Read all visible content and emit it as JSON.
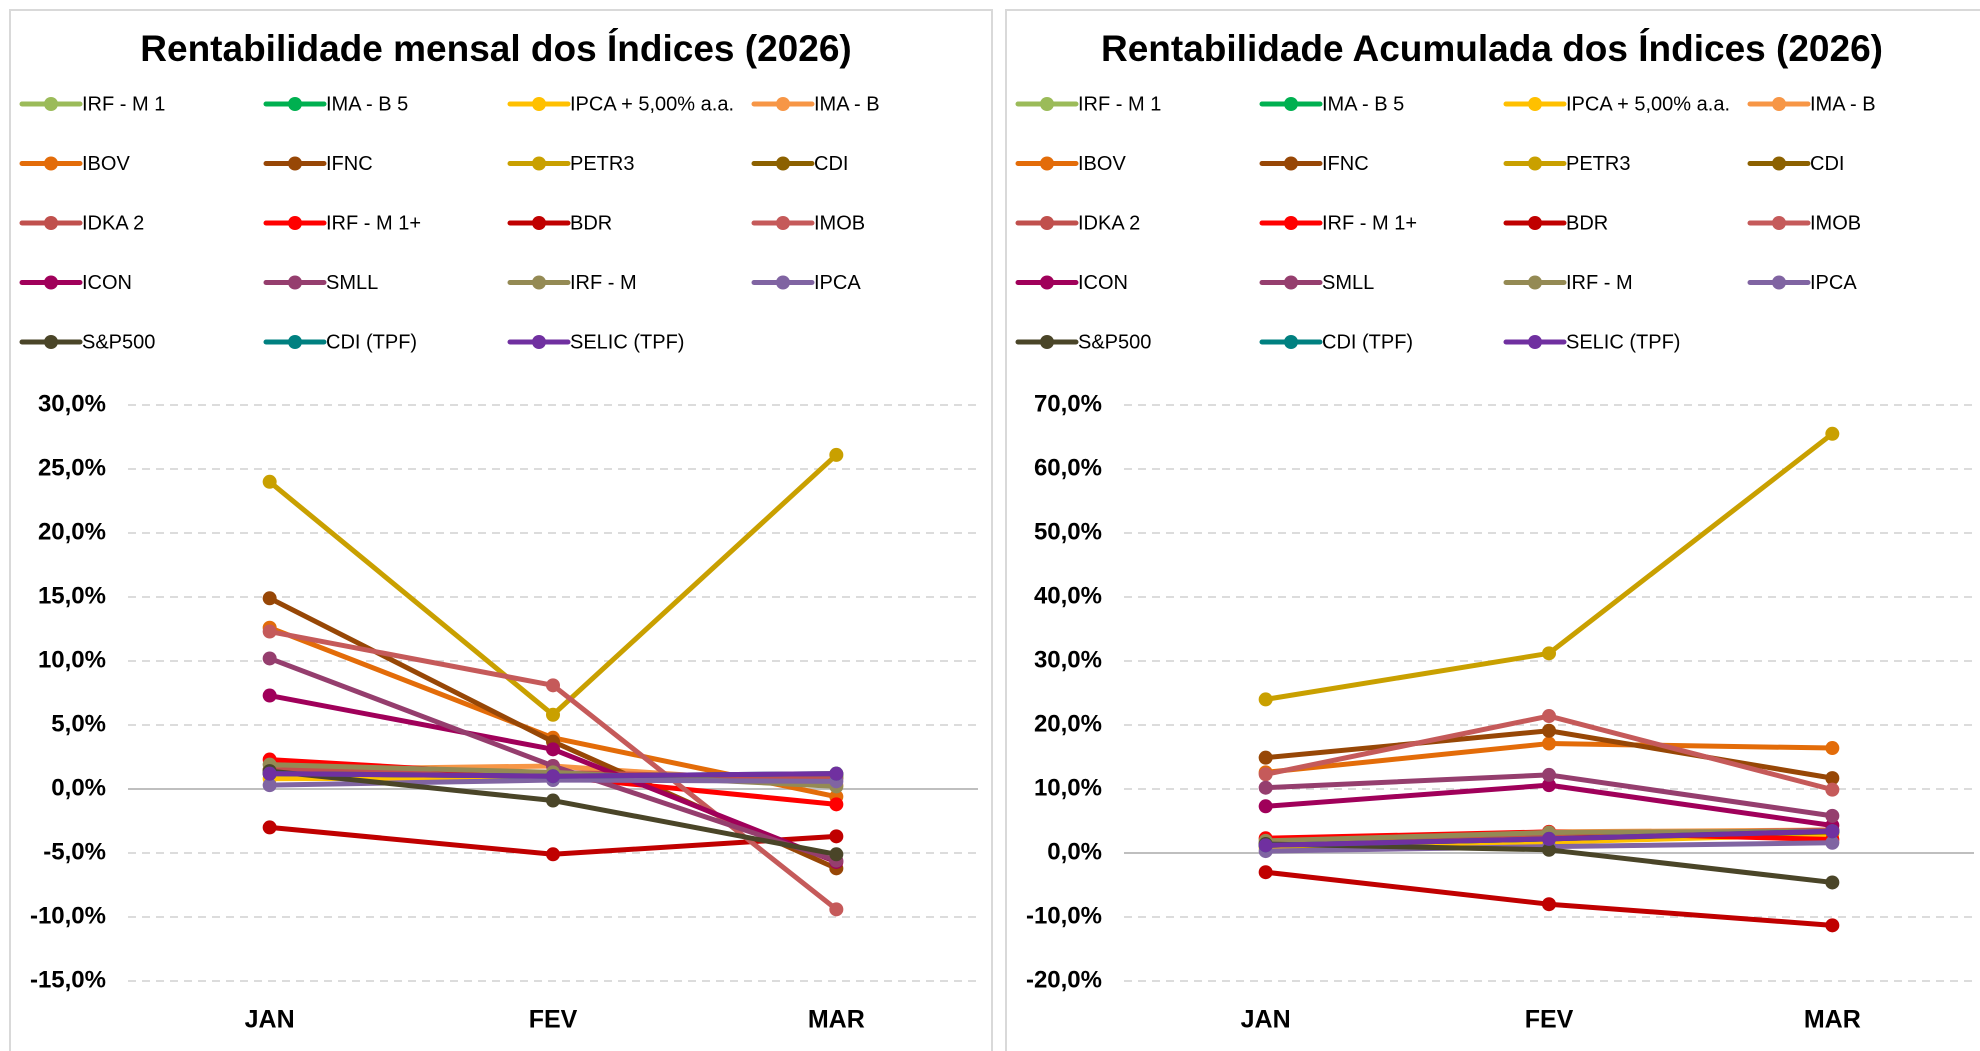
{
  "chart_data": [
    {
      "type": "line",
      "title": "Rentabilidade mensal dos Índices (2026)",
      "categories": [
        "JAN",
        "FEV",
        "MAR"
      ],
      "ylim": [
        -15,
        30
      ],
      "yticks": [
        {
          "value": -15,
          "label": "-15,0%"
        },
        {
          "value": -10,
          "label": "-10,0%"
        },
        {
          "value": -5,
          "label": "-5,0%"
        },
        {
          "value": 0,
          "label": "0,0%"
        },
        {
          "value": 5,
          "label": "5,0%"
        },
        {
          "value": 10,
          "label": "10,0%"
        },
        {
          "value": 15,
          "label": "15,0%"
        },
        {
          "value": 20,
          "label": "20,0%"
        },
        {
          "value": 25,
          "label": "25,0%"
        },
        {
          "value": 30,
          "label": "30,0%"
        }
      ],
      "grid": true,
      "series": [
        {
          "name": "IRF - M 1",
          "color": "#9bbb59",
          "values": [
            1.2,
            1.0,
            1.1
          ]
        },
        {
          "name": "IMA - B 5",
          "color": "#00b050",
          "values": [
            1.5,
            1.0,
            0.9
          ]
        },
        {
          "name": "IPCA + 5,00% a.a.",
          "color": "#ffc000",
          "values": [
            0.8,
            0.9,
            1.2
          ]
        },
        {
          "name": "IMA - B",
          "color": "#f79646",
          "values": [
            1.5,
            1.8,
            0.3
          ]
        },
        {
          "name": "IBOV",
          "color": "#e36c09",
          "values": [
            12.6,
            4.0,
            -0.6
          ]
        },
        {
          "name": "IFNC",
          "color": "#974706",
          "values": [
            14.9,
            3.7,
            -6.2
          ]
        },
        {
          "name": "PETR3",
          "color": "#c9a000",
          "values": [
            24.0,
            5.8,
            26.1
          ]
        },
        {
          "name": "CDI",
          "color": "#8c6100",
          "values": [
            1.2,
            1.0,
            1.1
          ]
        },
        {
          "name": "IDKA 2",
          "color": "#c0504d",
          "values": [
            1.5,
            1.3,
            0.8
          ]
        },
        {
          "name": "IRF - M 1+",
          "color": "#ff0000",
          "values": [
            2.3,
            1.0,
            -1.2
          ]
        },
        {
          "name": "BDR",
          "color": "#c00000",
          "values": [
            -3.0,
            -5.1,
            -3.7
          ]
        },
        {
          "name": "IMOB",
          "color": "#c55a5a",
          "values": [
            12.3,
            8.1,
            -9.4
          ]
        },
        {
          "name": "ICON",
          "color": "#a0005a",
          "values": [
            7.3,
            3.1,
            -5.7
          ]
        },
        {
          "name": "SMLL",
          "color": "#953e6e",
          "values": [
            10.2,
            1.8,
            -5.6
          ]
        },
        {
          "name": "IRF - M",
          "color": "#948a54",
          "values": [
            1.9,
            1.3,
            0.2
          ]
        },
        {
          "name": "IPCA",
          "color": "#8064a2",
          "values": [
            0.3,
            0.7,
            0.6
          ]
        },
        {
          "name": "S&P500",
          "color": "#4a4528",
          "values": [
            1.4,
            -0.9,
            -5.1
          ]
        },
        {
          "name": "CDI (TPF)",
          "color": "#008080",
          "values": [
            1.2,
            1.0,
            1.2
          ]
        },
        {
          "name": "SELIC (TPF)",
          "color": "#7030a0",
          "values": [
            1.2,
            1.0,
            1.2
          ]
        }
      ]
    },
    {
      "type": "line",
      "title": "Rentabilidade Acumulada dos Índices (2026)",
      "categories": [
        "JAN",
        "FEV",
        "MAR"
      ],
      "ylim": [
        -20,
        70
      ],
      "yticks": [
        {
          "value": -20,
          "label": "-20,0%"
        },
        {
          "value": -10,
          "label": "-10,0%"
        },
        {
          "value": 0,
          "label": "0,0%"
        },
        {
          "value": 10,
          "label": "10,0%"
        },
        {
          "value": 20,
          "label": "20,0%"
        },
        {
          "value": 30,
          "label": "30,0%"
        },
        {
          "value": 40,
          "label": "40,0%"
        },
        {
          "value": 50,
          "label": "50,0%"
        },
        {
          "value": 60,
          "label": "60,0%"
        },
        {
          "value": 70,
          "label": "70,0%"
        }
      ],
      "grid": true,
      "series": [
        {
          "name": "IRF - M 1",
          "color": "#9bbb59",
          "values": [
            1.2,
            2.2,
            3.3
          ]
        },
        {
          "name": "IMA - B 5",
          "color": "#00b050",
          "values": [
            1.5,
            2.5,
            3.4
          ]
        },
        {
          "name": "IPCA + 5,00% a.a.",
          "color": "#ffc000",
          "values": [
            0.8,
            1.7,
            2.9
          ]
        },
        {
          "name": "IMA - B",
          "color": "#f79646",
          "values": [
            1.5,
            3.3,
            3.6
          ]
        },
        {
          "name": "IBOV",
          "color": "#e36c09",
          "values": [
            12.6,
            17.1,
            16.4
          ]
        },
        {
          "name": "IFNC",
          "color": "#974706",
          "values": [
            14.9,
            19.1,
            11.7
          ]
        },
        {
          "name": "PETR3",
          "color": "#c9a000",
          "values": [
            24.0,
            31.2,
            65.5
          ]
        },
        {
          "name": "CDI",
          "color": "#8c6100",
          "values": [
            1.2,
            2.2,
            3.3
          ]
        },
        {
          "name": "IDKA 2",
          "color": "#c0504d",
          "values": [
            1.5,
            2.8,
            3.6
          ]
        },
        {
          "name": "IRF - M 1+",
          "color": "#ff0000",
          "values": [
            2.3,
            3.3,
            2.1
          ]
        },
        {
          "name": "BDR",
          "color": "#c00000",
          "values": [
            -3.0,
            -8.0,
            -11.3
          ]
        },
        {
          "name": "IMOB",
          "color": "#c55a5a",
          "values": [
            12.3,
            21.4,
            9.9
          ]
        },
        {
          "name": "ICON",
          "color": "#a0005a",
          "values": [
            7.3,
            10.6,
            4.3
          ]
        },
        {
          "name": "SMLL",
          "color": "#953e6e",
          "values": [
            10.2,
            12.2,
            5.8
          ]
        },
        {
          "name": "IRF - M",
          "color": "#948a54",
          "values": [
            1.9,
            3.2,
            3.4
          ]
        },
        {
          "name": "IPCA",
          "color": "#8064a2",
          "values": [
            0.3,
            1.0,
            1.6
          ]
        },
        {
          "name": "S&P500",
          "color": "#4a4528",
          "values": [
            1.4,
            0.5,
            -4.6
          ]
        },
        {
          "name": "CDI (TPF)",
          "color": "#008080",
          "values": [
            1.2,
            2.2,
            3.4
          ]
        },
        {
          "name": "SELIC (TPF)",
          "color": "#7030a0",
          "values": [
            1.2,
            2.2,
            3.4
          ]
        }
      ]
    }
  ]
}
